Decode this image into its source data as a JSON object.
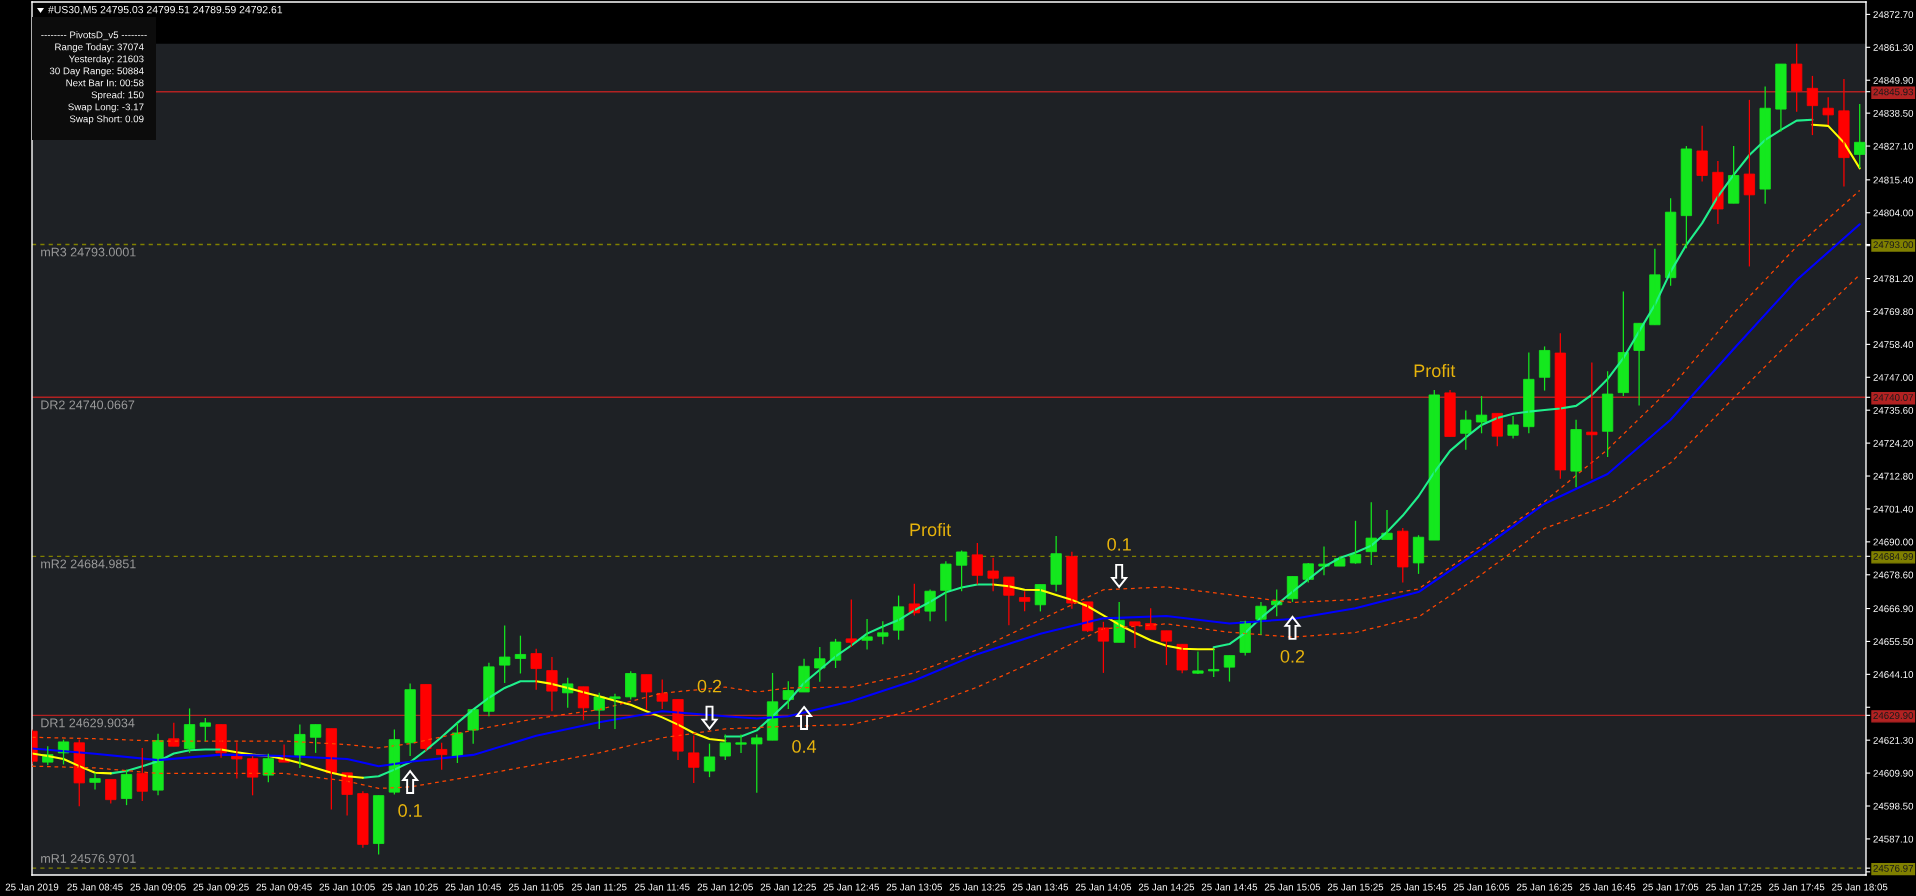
{
  "chart_data": {
    "type": "candlestick",
    "title": "#US30,M5 24795.03 24799.51 24789.59 24792.61",
    "x": [
      "2019-01-25T08:25",
      "2019-01-25T08:30",
      "2019-01-25T08:35",
      "2019-01-25T08:40",
      "2019-01-25T08:45",
      "2019-01-25T08:50",
      "2019-01-25T08:55",
      "2019-01-25T09:00",
      "2019-01-25T09:05",
      "2019-01-25T09:10",
      "2019-01-25T09:15",
      "2019-01-25T09:20",
      "2019-01-25T09:25",
      "2019-01-25T09:30",
      "2019-01-25T09:35",
      "2019-01-25T09:40",
      "2019-01-25T09:45",
      "2019-01-25T09:50",
      "2019-01-25T09:55",
      "2019-01-25T10:00",
      "2019-01-25T10:05",
      "2019-01-25T10:10",
      "2019-01-25T10:15",
      "2019-01-25T10:20",
      "2019-01-25T10:25",
      "2019-01-25T10:30",
      "2019-01-25T10:35",
      "2019-01-25T10:40",
      "2019-01-25T10:45",
      "2019-01-25T10:50",
      "2019-01-25T10:55",
      "2019-01-25T11:00",
      "2019-01-25T11:05",
      "2019-01-25T11:10",
      "2019-01-25T11:15",
      "2019-01-25T11:20",
      "2019-01-25T11:25",
      "2019-01-25T11:30",
      "2019-01-25T11:35",
      "2019-01-25T11:40",
      "2019-01-25T11:45",
      "2019-01-25T11:50",
      "2019-01-25T11:55",
      "2019-01-25T12:00",
      "2019-01-25T12:05",
      "2019-01-25T12:10",
      "2019-01-25T12:15",
      "2019-01-25T12:20",
      "2019-01-25T12:25",
      "2019-01-25T12:30",
      "2019-01-25T12:35",
      "2019-01-25T12:40",
      "2019-01-25T12:45",
      "2019-01-25T12:50",
      "2019-01-25T12:55",
      "2019-01-25T13:00",
      "2019-01-25T13:05",
      "2019-01-25T13:10",
      "2019-01-25T13:15",
      "2019-01-25T13:20",
      "2019-01-25T13:25",
      "2019-01-25T13:30",
      "2019-01-25T13:35",
      "2019-01-25T13:40",
      "2019-01-25T13:45",
      "2019-01-25T13:50",
      "2019-01-25T13:55",
      "2019-01-25T14:00",
      "2019-01-25T14:05",
      "2019-01-25T14:10",
      "2019-01-25T14:15",
      "2019-01-25T14:20",
      "2019-01-25T14:25",
      "2019-01-25T14:30",
      "2019-01-25T14:35",
      "2019-01-25T14:40",
      "2019-01-25T14:45",
      "2019-01-25T14:50",
      "2019-01-25T14:55",
      "2019-01-25T15:00",
      "2019-01-25T15:05",
      "2019-01-25T15:10",
      "2019-01-25T15:15",
      "2019-01-25T15:20",
      "2019-01-25T15:25",
      "2019-01-25T15:30",
      "2019-01-25T15:35",
      "2019-01-25T15:40",
      "2019-01-25T15:45",
      "2019-01-25T15:50",
      "2019-01-25T15:55",
      "2019-01-25T16:00",
      "2019-01-25T16:05",
      "2019-01-25T16:10",
      "2019-01-25T16:15",
      "2019-01-25T16:20",
      "2019-01-25T16:25",
      "2019-01-25T16:30",
      "2019-01-25T16:35",
      "2019-01-25T16:40",
      "2019-01-25T16:45",
      "2019-01-25T16:50",
      "2019-01-25T16:55",
      "2019-01-25T17:00",
      "2019-01-25T17:05",
      "2019-01-25T17:10",
      "2019-01-25T17:15",
      "2019-01-25T17:20",
      "2019-01-25T17:25",
      "2019-01-25T17:30",
      "2019-01-25T17:35",
      "2019-01-25T17:40",
      "2019-01-25T17:45",
      "2019-01-25T17:50",
      "2019-01-25T17:55",
      "2019-01-25T18:00",
      "2019-01-25T18:05"
    ],
    "ohlc": [
      [
        24624.4,
        24625.0,
        24613.0,
        24614.0
      ],
      [
        24613.7,
        24619.2,
        24612.6,
        24616.3
      ],
      [
        24616.9,
        24621.5,
        24612.9,
        24620.7
      ],
      [
        24620.4,
        24621.5,
        24598.4,
        24606.5
      ],
      [
        24606.7,
        24610.0,
        24604.2,
        24608.0
      ],
      [
        24607.7,
        24607.7,
        24599.4,
        24600.7
      ],
      [
        24601.1,
        24611.1,
        24598.8,
        24609.4
      ],
      [
        24609.8,
        24618.6,
        24600.2,
        24603.6
      ],
      [
        24604.0,
        24623.5,
        24602.2,
        24621.2
      ],
      [
        24621.8,
        24627.3,
        24619.2,
        24619.2
      ],
      [
        24618.4,
        24632.3,
        24616.9,
        24626.7
      ],
      [
        24626.1,
        24629.0,
        24620.9,
        24627.3
      ],
      [
        24626.7,
        24626.7,
        24615.2,
        24616.9
      ],
      [
        24616.3,
        24620.6,
        24608.0,
        24614.8
      ],
      [
        24614.9,
        24615.8,
        24602.2,
        24608.5
      ],
      [
        24609.2,
        24616.6,
        24606.7,
        24614.9
      ],
      [
        24614.8,
        24619.8,
        24613.7,
        24613.7
      ],
      [
        24616.1,
        24626.7,
        24611.7,
        24623.3
      ],
      [
        24622.3,
        24626.7,
        24616.9,
        24626.7
      ],
      [
        24625.3,
        24625.3,
        24597.3,
        24610.0
      ],
      [
        24610.0,
        24610.0,
        24595.2,
        24602.5
      ],
      [
        24602.8,
        24603.6,
        24584.0,
        24585.2
      ],
      [
        24585.5,
        24602.1,
        24581.7,
        24602.1
      ],
      [
        24603.3,
        24625.0,
        24602.5,
        24621.5
      ],
      [
        24620.4,
        24640.9,
        24615.8,
        24638.8
      ],
      [
        24640.6,
        24640.6,
        24617.5,
        24618.4
      ],
      [
        24618.1,
        24620.4,
        24611.1,
        24616.3
      ],
      [
        24615.8,
        24627.3,
        24613.4,
        24623.8
      ],
      [
        24624.8,
        24631.9,
        24620.1,
        24631.9
      ],
      [
        24631.3,
        24648.1,
        24629.6,
        24646.7
      ],
      [
        24647.3,
        24661.0,
        24641.1,
        24650.1
      ],
      [
        24649.6,
        24657.5,
        24644.4,
        24651.0
      ],
      [
        24651.3,
        24653.0,
        24638.8,
        24646.1
      ],
      [
        24645.4,
        24650.1,
        24631.3,
        24638.3
      ],
      [
        24637.7,
        24642.9,
        24632.5,
        24640.8
      ],
      [
        24639.8,
        24639.8,
        24628.2,
        24632.5
      ],
      [
        24631.7,
        24637.7,
        24625.2,
        24636.3
      ],
      [
        24635.7,
        24637.4,
        24625.2,
        24636.3
      ],
      [
        24636.3,
        24645.2,
        24635.4,
        24644.4
      ],
      [
        24644.0,
        24644.0,
        24631.9,
        24638.0
      ],
      [
        24637.5,
        24642.3,
        24632.1,
        24634.8
      ],
      [
        24635.4,
        24635.4,
        24614.4,
        24617.5
      ],
      [
        24616.9,
        24622.9,
        24606.5,
        24611.9
      ],
      [
        24610.6,
        24620.1,
        24608.5,
        24615.5
      ],
      [
        24615.8,
        24623.3,
        24614.4,
        24620.4
      ],
      [
        24619.9,
        24623.3,
        24616.9,
        24620.4
      ],
      [
        24620.0,
        24623.3,
        24603.1,
        24622.1
      ],
      [
        24621.3,
        24644.6,
        24621.3,
        24634.6
      ],
      [
        24635.4,
        24641.7,
        24632.1,
        24638.5
      ],
      [
        24638.0,
        24649.5,
        24638.0,
        24646.9
      ],
      [
        24646.3,
        24653.6,
        24641.5,
        24649.5
      ],
      [
        24649.0,
        24656.4,
        24646.3,
        24655.3
      ],
      [
        24656.4,
        24670.0,
        24653.6,
        24655.2
      ],
      [
        24655.9,
        24663.3,
        24652.7,
        24657.1
      ],
      [
        24657.3,
        24662.5,
        24654.5,
        24658.5
      ],
      [
        24659.4,
        24671.4,
        24656.1,
        24667.5
      ],
      [
        24668.5,
        24675.5,
        24664.5,
        24665.4
      ],
      [
        24666.0,
        24673.5,
        24662.5,
        24672.9
      ],
      [
        24673.2,
        24683.3,
        24662.5,
        24682.3
      ],
      [
        24681.9,
        24687.0,
        24672.9,
        24686.5
      ],
      [
        24685.5,
        24689.6,
        24675.2,
        24678.4
      ],
      [
        24679.9,
        24684.5,
        24672.9,
        24677.4
      ],
      [
        24677.8,
        24677.8,
        24661.1,
        24671.5
      ],
      [
        24670.7,
        24672.9,
        24666.0,
        24669.4
      ],
      [
        24668.2,
        24675.2,
        24665.9,
        24675.2
      ],
      [
        24675.3,
        24692.0,
        24672.8,
        24685.9
      ],
      [
        24684.9,
        24686.6,
        24666.8,
        24668.8
      ],
      [
        24669.2,
        24669.2,
        24658.8,
        24659.2
      ],
      [
        24660.2,
        24662.3,
        24644.6,
        24655.6
      ],
      [
        24655.2,
        24669.2,
        24655.2,
        24662.8
      ],
      [
        24662.3,
        24662.3,
        24653.2,
        24661.0
      ],
      [
        24661.7,
        24667.0,
        24659.6,
        24659.6
      ],
      [
        24659.2,
        24659.2,
        24647.3,
        24655.6
      ],
      [
        24654.5,
        24654.5,
        24644.5,
        24645.6
      ],
      [
        24644.5,
        24652.0,
        24644.2,
        24645.3
      ],
      [
        24645.3,
        24652.8,
        24643.2,
        24645.8
      ],
      [
        24646.6,
        24650.6,
        24641.6,
        24650.6
      ],
      [
        24651.7,
        24662.7,
        24650.6,
        24662.3
      ],
      [
        24663.2,
        24669.2,
        24657.8,
        24667.7
      ],
      [
        24668.2,
        24673.5,
        24664.2,
        24669.5
      ],
      [
        24670.3,
        24678.0,
        24669.2,
        24678.0
      ],
      [
        24677.0,
        24682.7,
        24675.9,
        24682.4
      ],
      [
        24681.6,
        24688.4,
        24678.4,
        24682.3
      ],
      [
        24681.6,
        24684.9,
        24681.6,
        24684.2
      ],
      [
        24682.7,
        24697.3,
        24682.4,
        24685.6
      ],
      [
        24686.6,
        24703.7,
        24682.0,
        24691.3
      ],
      [
        24690.8,
        24701.0,
        24690.8,
        24693.0
      ],
      [
        24693.7,
        24694.8,
        24675.9,
        24681.3
      ],
      [
        24682.7,
        24692.3,
        24678.9,
        24691.6
      ],
      [
        24690.6,
        24742.6,
        24690.6,
        24740.9
      ],
      [
        24741.6,
        24742.6,
        24726.5,
        24726.5
      ],
      [
        24727.6,
        24735.5,
        24721.9,
        24732.2
      ],
      [
        24731.5,
        24740.5,
        24727.6,
        24733.9
      ],
      [
        24734.5,
        24734.5,
        24723.1,
        24726.6
      ],
      [
        24726.9,
        24733.6,
        24725.8,
        24730.5
      ],
      [
        24729.9,
        24755.6,
        24727.6,
        24746.3
      ],
      [
        24747.0,
        24757.7,
        24742.4,
        24756.3
      ],
      [
        24755.4,
        24762.3,
        24711.9,
        24714.9
      ],
      [
        24714.5,
        24732.3,
        24708.9,
        24728.9
      ],
      [
        24728.0,
        24752.1,
        24711.9,
        24727.1
      ],
      [
        24728.3,
        24749.1,
        24719.4,
        24741.2
      ],
      [
        24741.7,
        24776.7,
        24740.5,
        24755.6
      ],
      [
        24756.3,
        24765.7,
        24737.2,
        24765.7
      ],
      [
        24765.2,
        24791.5,
        24765.2,
        24782.5
      ],
      [
        24781.5,
        24809.0,
        24778.7,
        24804.2
      ],
      [
        24803.0,
        24827.1,
        24791.7,
        24826.1
      ],
      [
        24825.4,
        24834.1,
        24814.8,
        24816.9
      ],
      [
        24818.0,
        24821.9,
        24800.1,
        24805.3
      ],
      [
        24807.3,
        24827.1,
        24807.3,
        24816.9
      ],
      [
        24817.4,
        24843.1,
        24785.4,
        24810.2
      ],
      [
        24812.2,
        24847.7,
        24807.1,
        24840.2
      ],
      [
        24839.9,
        24855.5,
        24832.1,
        24855.5
      ],
      [
        24855.5,
        24862.5,
        24839.0,
        24846.2
      ],
      [
        24847.1,
        24851.4,
        24830.9,
        24841.1
      ],
      [
        24840.2,
        24844.0,
        24834.4,
        24837.9
      ],
      [
        24839.3,
        24850.3,
        24813.1,
        24823.1
      ],
      [
        24824.2,
        24841.7,
        24819.4,
        24828.4
      ]
    ],
    "colors": [
      "#ff0000",
      "#14e81e",
      "#14e81e",
      "#ff0000",
      "#14e81e",
      "#ff0000",
      "#14e81e",
      "#ff0000",
      "#14e81e",
      "#ff0000",
      "#14e81e",
      "#14e81e",
      "#ff0000",
      "#ff0000",
      "#ff0000",
      "#14e81e",
      "#ff0000",
      "#14e81e",
      "#14e81e",
      "#ff0000",
      "#ff0000",
      "#ff0000",
      "#14e81e",
      "#14e81e",
      "#14e81e",
      "#ff0000",
      "#ff0000",
      "#14e81e",
      "#14e81e",
      "#14e81e",
      "#14e81e",
      "#14e81e",
      "#ff0000",
      "#ff0000",
      "#14e81e",
      "#ff0000",
      "#14e81e",
      "#14e81e",
      "#14e81e",
      "#ff0000",
      "#ff0000",
      "#ff0000",
      "#ff0000",
      "#14e81e",
      "#14e81e",
      "#14e81e",
      "#14e81e",
      "#14e81e",
      "#14e81e",
      "#14e81e",
      "#14e81e",
      "#14e81e",
      "#ff0000",
      "#14e81e",
      "#14e81e",
      "#14e81e",
      "#ff0000",
      "#14e81e",
      "#14e81e",
      "#14e81e",
      "#ff0000",
      "#ff0000",
      "#ff0000",
      "#ff0000",
      "#14e81e",
      "#14e81e",
      "#ff0000",
      "#ff0000",
      "#ff0000",
      "#14e81e",
      "#ff0000",
      "#ff0000",
      "#ff0000",
      "#ff0000",
      "#14e81e",
      "#14e81e",
      "#14e81e",
      "#14e81e",
      "#14e81e",
      "#14e81e",
      "#14e81e",
      "#14e81e",
      "#14e81e",
      "#14e81e",
      "#14e81e",
      "#14e81e",
      "#14e81e",
      "#ff0000",
      "#14e81e",
      "#14e81e",
      "#ff0000",
      "#14e81e",
      "#14e81e",
      "#ff0000",
      "#14e81e",
      "#14e81e",
      "#14e81e",
      "#ff0000",
      "#14e81e",
      "#ff0000",
      "#14e81e",
      "#14e81e",
      "#14e81e",
      "#14e81e",
      "#14e81e",
      "#14e81e",
      "#ff0000",
      "#ff0000",
      "#14e81e",
      "#ff0000",
      "#14e81e",
      "#14e81e",
      "#ff0000",
      "#ff0000",
      "#ff0000",
      "#ff0000",
      "#14e81e"
    ],
    "series": [
      {
        "type": "line",
        "color": "#20f08c",
        "values": [
          null,
          null,
          null,
          null,
          null,
          24609.8,
          24610.6,
          24612.3,
          24614.0,
          24616.7,
          24617.8,
          24618.1,
          24618.1,
          null,
          null,
          null,
          null,
          null,
          null,
          null,
          null,
          24608.3,
          24608.8,
          24611.1,
          24613.7,
          24617.8,
          24622.4,
          24627.3,
          24631.9,
          24636.0,
          24639.4,
          24641.7,
          24641.7,
          null,
          null,
          null,
          null,
          null,
          null,
          null,
          null,
          null,
          null,
          null,
          24622.6,
          24622.6,
          24624.7,
          24629.6,
          24634.8,
          24641.1,
          24645.7,
          24650.3,
          24654.1,
          24658.2,
          24660.7,
          24662.9,
          24666.3,
          24669.2,
          24672.5,
          24674.2,
          24675.2,
          24675.2,
          null,
          null,
          null,
          null,
          null,
          null,
          null,
          null,
          null,
          null,
          null,
          null,
          null,
          24653.5,
          24654.6,
          24658.5,
          24663.7,
          24668.2,
          24672.7,
          24677.0,
          24681.3,
          24684.4,
          24686.3,
          24688.7,
          24693.4,
          24699.1,
          24705.8,
          24714.1,
          24721.5,
          24726.2,
          24730.5,
          24732.9,
          24734.4,
          24735.1,
          24735.7,
          24736.2,
          24737.1,
          24740.9,
          24746.4,
          24753.6,
          24762.9,
          24772.1,
          24783.6,
          24792.9,
          24800.4,
          24809.6,
          24817.1,
          24824.0,
          24829.2,
          24832.7,
          24835.9,
          24836.2,
          null,
          null,
          null
        ]
      },
      {
        "type": "line",
        "color": "#ffff00",
        "values": [
          24616.7,
          24615.8,
          24614.8,
          24612.3,
          24610.0,
          24609.8,
          null,
          null,
          null,
          null,
          null,
          null,
          24618.1,
          24617.1,
          24616.3,
          24615.8,
          24614.8,
          24613.4,
          24611.7,
          24610.0,
          24608.8,
          24608.3,
          null,
          null,
          null,
          null,
          null,
          null,
          null,
          null,
          null,
          null,
          24641.7,
          24640.8,
          24639.4,
          24637.9,
          24636.5,
          24635.0,
          24633.6,
          24631.3,
          24629.2,
          24626.7,
          24623.8,
          24621.7,
          24621.1,
          null,
          null,
          null,
          null,
          null,
          null,
          null,
          null,
          null,
          null,
          null,
          null,
          null,
          null,
          null,
          null,
          24675.2,
          24674.6,
          24673.4,
          24673.3,
          24671.6,
          24669.9,
          24667.7,
          24664.5,
          24661.3,
          24658.5,
          24655.9,
          24654.0,
          24653.0,
          24652.8,
          24652.8,
          null,
          null,
          null,
          null,
          null,
          null,
          null,
          null,
          null,
          null,
          null,
          null,
          null,
          null,
          null,
          null,
          null,
          null,
          null,
          null,
          null,
          null,
          null,
          null,
          null,
          null,
          null,
          null,
          null,
          null,
          null,
          null,
          null,
          null,
          null,
          null,
          null,
          24834.5,
          24834.1,
          24828.3,
          24819.4
        ]
      },
      {
        "type": "line",
        "color": "#0000ff",
        "x": [
          "2019-01-25T08:25",
          "2019-01-25T08:45",
          "2019-01-25T09:05",
          "2019-01-25T09:25",
          "2019-01-25T09:45",
          "2019-01-25T10:05",
          "2019-01-25T10:15",
          "2019-01-25T10:25",
          "2019-01-25T10:45",
          "2019-01-25T11:05",
          "2019-01-25T11:25",
          "2019-01-25T11:45",
          "2019-01-25T12:05",
          "2019-01-25T12:15",
          "2019-01-25T12:25",
          "2019-01-25T12:45",
          "2019-01-25T13:05",
          "2019-01-25T13:25",
          "2019-01-25T13:45",
          "2019-01-25T14:05",
          "2019-01-25T14:25",
          "2019-01-25T14:45",
          "2019-01-25T15:05",
          "2019-01-25T15:25",
          "2019-01-25T15:45",
          "2019-01-25T16:05",
          "2019-01-25T16:25",
          "2019-01-25T16:45",
          "2019-01-25T17:05",
          "2019-01-25T17:25",
          "2019-01-25T17:45",
          "2019-01-25T18:05"
        ],
        "values": [
          24618.4,
          24616.6,
          24614.4,
          24616.3,
          24615.8,
          24614.8,
          24612.3,
          24613.8,
          24616.2,
          24622.8,
          24627.5,
          24631.3,
          24629.6,
          24628.8,
          24629.6,
          24634.8,
          24642.0,
          24651.1,
          24658.2,
          24663.5,
          24664.3,
          24661.7,
          24663.3,
          24667.0,
          24672.6,
          24687.5,
          24703.2,
          24713.5,
          24732.3,
          24756.8,
          24780.7,
          24800.0
        ]
      },
      {
        "type": "line",
        "color": "#ff4500",
        "line_style": "dashed",
        "x": [
          "2019-01-25T08:25",
          "2019-01-25T08:45",
          "2019-01-25T09:05",
          "2019-01-25T09:25",
          "2019-01-25T09:45",
          "2019-01-25T10:05",
          "2019-01-25T10:15",
          "2019-01-25T10:25",
          "2019-01-25T10:45",
          "2019-01-25T11:05",
          "2019-01-25T11:25",
          "2019-01-25T11:45",
          "2019-01-25T12:05",
          "2019-01-25T12:15",
          "2019-01-25T12:25",
          "2019-01-25T12:45",
          "2019-01-25T13:05",
          "2019-01-25T13:25",
          "2019-01-25T13:45",
          "2019-01-25T14:05",
          "2019-01-25T14:25",
          "2019-01-25T14:45",
          "2019-01-25T15:05",
          "2019-01-25T15:25",
          "2019-01-25T15:45",
          "2019-01-25T16:05",
          "2019-01-25T16:25",
          "2019-01-25T16:45",
          "2019-01-25T17:05",
          "2019-01-25T17:25",
          "2019-01-25T17:45",
          "2019-01-25T18:05"
        ],
        "values": [
          24622.3,
          24621.8,
          24621.0,
          24621.0,
          24621.0,
          24619.8,
          24618.6,
          24620.1,
          24624.8,
          24628.8,
          24631.9,
          24637.6,
          24639.7,
          24638.0,
          24639.4,
          24639.7,
          24644.6,
          24652.6,
          24663.0,
          24673.4,
          24674.4,
          24671.7,
          24669.0,
          24670.0,
          24673.7,
          24688.7,
          24704.0,
          24722.0,
          24743.2,
          24769.2,
          24792.3,
          24811.7
        ]
      },
      {
        "type": "line",
        "color": "#ff4500",
        "line_style": "dashed",
        "x": [
          "2019-01-25T08:25",
          "2019-01-25T08:45",
          "2019-01-25T09:05",
          "2019-01-25T09:25",
          "2019-01-25T09:45",
          "2019-01-25T10:05",
          "2019-01-25T10:15",
          "2019-01-25T10:25",
          "2019-01-25T10:45",
          "2019-01-25T11:05",
          "2019-01-25T11:25",
          "2019-01-25T11:45",
          "2019-01-25T12:05",
          "2019-01-25T12:15",
          "2019-01-25T12:25",
          "2019-01-25T12:45",
          "2019-01-25T13:05",
          "2019-01-25T13:25",
          "2019-01-25T13:45",
          "2019-01-25T14:05",
          "2019-01-25T14:25",
          "2019-01-25T14:45",
          "2019-01-25T15:05",
          "2019-01-25T15:25",
          "2019-01-25T15:45",
          "2019-01-25T16:05",
          "2019-01-25T16:25",
          "2019-01-25T16:45",
          "2019-01-25T17:05",
          "2019-01-25T17:25",
          "2019-01-25T17:45",
          "2019-01-25T18:05"
        ],
        "values": [
          24612.3,
          24611.7,
          24609.8,
          24609.8,
          24609.8,
          24607.1,
          24604.6,
          24605.1,
          24608.8,
          24612.8,
          24616.9,
          24622.1,
          24625.2,
          24625.7,
          24626.1,
          24626.7,
          24631.6,
          24639.7,
          24649.5,
          24659.9,
          24661.6,
          24658.7,
          24657.0,
          24658.6,
          24664.0,
          24678.7,
          24694.7,
          24702.6,
          24717.4,
          24739.8,
          24761.7,
          24782.5
        ]
      }
    ],
    "xlim": [
      "2019-01-25T08:25",
      "2019-01-25T18:07"
    ],
    "xticks": [
      {
        "value": "2019-01-25T08:25",
        "label": "25 Jan 2019"
      },
      {
        "value": "2019-01-25T08:45",
        "label": "25 Jan 08:45"
      },
      {
        "value": "2019-01-25T09:05",
        "label": "25 Jan 09:05"
      },
      {
        "value": "2019-01-25T09:25",
        "label": "25 Jan 09:25"
      },
      {
        "value": "2019-01-25T09:45",
        "label": "25 Jan 09:45"
      },
      {
        "value": "2019-01-25T10:05",
        "label": "25 Jan 10:05"
      },
      {
        "value": "2019-01-25T10:25",
        "label": "25 Jan 10:25"
      },
      {
        "value": "2019-01-25T10:45",
        "label": "25 Jan 10:45"
      },
      {
        "value": "2019-01-25T11:05",
        "label": "25 Jan 11:05"
      },
      {
        "value": "2019-01-25T11:25",
        "label": "25 Jan 11:25"
      },
      {
        "value": "2019-01-25T11:45",
        "label": "25 Jan 11:45"
      },
      {
        "value": "2019-01-25T12:05",
        "label": "25 Jan 12:05"
      },
      {
        "value": "2019-01-25T12:25",
        "label": "25 Jan 12:25"
      },
      {
        "value": "2019-01-25T12:45",
        "label": "25 Jan 12:45"
      },
      {
        "value": "2019-01-25T13:05",
        "label": "25 Jan 13:05"
      },
      {
        "value": "2019-01-25T13:25",
        "label": "25 Jan 13:25"
      },
      {
        "value": "2019-01-25T13:45",
        "label": "25 Jan 13:45"
      },
      {
        "value": "2019-01-25T14:05",
        "label": "25 Jan 14:05"
      },
      {
        "value": "2019-01-25T14:25",
        "label": "25 Jan 14:25"
      },
      {
        "value": "2019-01-25T14:45",
        "label": "25 Jan 14:45"
      },
      {
        "value": "2019-01-25T15:05",
        "label": "25 Jan 15:05"
      },
      {
        "value": "2019-01-25T15:25",
        "label": "25 Jan 15:25"
      },
      {
        "value": "2019-01-25T15:45",
        "label": "25 Jan 15:45"
      },
      {
        "value": "2019-01-25T16:05",
        "label": "25 Jan 16:05"
      },
      {
        "value": "2019-01-25T16:25",
        "label": "25 Jan 16:25"
      },
      {
        "value": "2019-01-25T16:45",
        "label": "25 Jan 16:45"
      },
      {
        "value": "2019-01-25T17:05",
        "label": "25 Jan 17:05"
      },
      {
        "value": "2019-01-25T17:25",
        "label": "25 Jan 17:25"
      },
      {
        "value": "2019-01-25T17:45",
        "label": "25 Jan 17:45"
      },
      {
        "value": "2019-01-25T18:05",
        "label": "25 Jan 18:05"
      }
    ],
    "ylim": [
      24574.6,
      24877.0
    ],
    "yticks": [
      {
        "value": 24872.7,
        "label": "24872.70"
      },
      {
        "value": 24861.3,
        "label": "24861.30"
      },
      {
        "value": 24849.9,
        "label": "24849.90"
      },
      {
        "value": 24845.93,
        "label": "24845.93"
      },
      {
        "value": 24838.5,
        "label": "24838.50"
      },
      {
        "value": 24827.1,
        "label": "24827.10"
      },
      {
        "value": 24815.4,
        "label": "24815.40"
      },
      {
        "value": 24804.0,
        "label": "24804.00"
      },
      {
        "value": 24793.0,
        "label": "24793.00"
      },
      {
        "value": 24792.6,
        "label": null
      },
      {
        "value": 24781.2,
        "label": "24781.20"
      },
      {
        "value": 24769.8,
        "label": "24769.80"
      },
      {
        "value": 24758.4,
        "label": "24758.40"
      },
      {
        "value": 24747.0,
        "label": "24747.00"
      },
      {
        "value": 24740.07,
        "label": "24740.07"
      },
      {
        "value": 24735.6,
        "label": "24735.60"
      },
      {
        "value": 24724.2,
        "label": "24724.20"
      },
      {
        "value": 24712.8,
        "label": "24712.80"
      },
      {
        "value": 24701.4,
        "label": "24701.40"
      },
      {
        "value": 24690.0,
        "label": "24690.00"
      },
      {
        "value": 24684.99,
        "label": "24684.99"
      },
      {
        "value": 24678.6,
        "label": "24678.60"
      },
      {
        "value": 24666.9,
        "label": "24666.90"
      },
      {
        "value": 24655.5,
        "label": "24655.50"
      },
      {
        "value": 24644.1,
        "label": "24644.10"
      },
      {
        "value": 24632.7,
        "label": null
      },
      {
        "value": 24629.9,
        "label": "24629.90"
      },
      {
        "value": 24621.3,
        "label": "24621.30"
      },
      {
        "value": 24609.9,
        "label": "24609.90"
      },
      {
        "value": 24598.5,
        "label": "24598.50"
      },
      {
        "value": 24587.1,
        "label": "24587.10"
      },
      {
        "value": 24576.97,
        "label": "24576.97"
      },
      {
        "value": 24575.7,
        "label": null
      }
    ],
    "ref_lines": [
      {
        "axis": "y",
        "value": 24845.93,
        "color": "#b22222"
      },
      {
        "axis": "y",
        "value": 24793.0001,
        "label": "mR3 24793.0001",
        "color": "#808000",
        "line_style": "dashed"
      },
      {
        "axis": "y",
        "value": 24740.0667,
        "label": "DR2 24740.0667",
        "color": "#b22222"
      },
      {
        "axis": "y",
        "value": 24684.9851,
        "label": "mR2 24684.9851",
        "color": "#808000",
        "line_style": "dashed"
      },
      {
        "axis": "y",
        "value": 24629.9034,
        "label": "DR1 24629.9034",
        "color": "#b22222"
      },
      {
        "axis": "y",
        "value": 24576.9701,
        "label": "mR1 24576.9701",
        "color": "#808000",
        "line_style": "dashed"
      }
    ],
    "bands": [
      {
        "axis": "y",
        "from": 24862.5,
        "to": 24877.0,
        "color": "#000000"
      }
    ],
    "annotations": [
      "-------- PivotsD_v5 --------",
      "Range Today: 37074",
      "Yesterday: 21603",
      "30 Day Range: 50884",
      "Next Bar In: 00:58",
      "Spread: 150",
      "Swap Long: -3.17",
      "Swap Short: 0.09",
      {
        "text": "0.1",
        "x": "2019-01-25T10:25",
        "y": 24615.8
      },
      {
        "text": "0.2",
        "x": "2019-01-25T12:00",
        "y": 24620.1
      },
      {
        "text": "0.4",
        "x": "2019-01-25T12:30",
        "y": 24638.0
      },
      {
        "text": "Profit",
        "x": "2019-01-25T13:10",
        "y": 24684.9851
      },
      {
        "text": "0.1",
        "x": "2019-01-25T14:10",
        "y": 24669.2
      },
      {
        "text": "0.2",
        "x": "2019-01-25T15:05",
        "y": 24669.2
      },
      {
        "text": "Profit",
        "x": "2019-01-25T15:50",
        "y": 24740.0667
      }
    ]
  }
}
